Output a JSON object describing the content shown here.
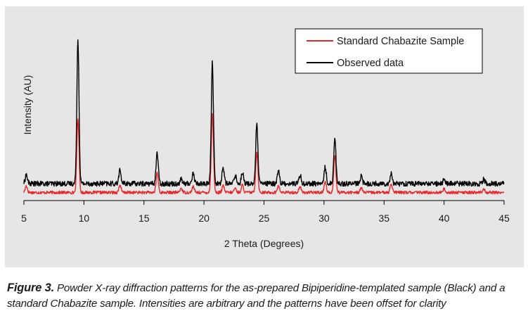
{
  "chart_data": {
    "type": "line",
    "xlabel": "2 Theta (Degrees)",
    "ylabel": "Intensity (AU)",
    "xlim": [
      5,
      45
    ],
    "x_ticks": [
      5,
      10,
      15,
      20,
      25,
      30,
      35,
      40,
      45
    ],
    "grid": false,
    "legend_position": "top-right",
    "series": [
      {
        "name": "Standard Chabazite Sample",
        "color": "#e8282c",
        "offset": 0,
        "baseline": 9,
        "noise": 2,
        "peaks": [
          [
            5.2,
            9
          ],
          [
            9.5,
            100
          ],
          [
            13.0,
            10
          ],
          [
            16.1,
            27
          ],
          [
            18.1,
            6
          ],
          [
            19.1,
            8
          ],
          [
            20.7,
            108
          ],
          [
            21.6,
            9
          ],
          [
            22.6,
            6
          ],
          [
            23.2,
            10
          ],
          [
            24.4,
            55
          ],
          [
            26.2,
            9
          ],
          [
            28.0,
            8
          ],
          [
            30.1,
            15
          ],
          [
            30.9,
            50
          ],
          [
            33.1,
            7
          ],
          [
            35.6,
            12
          ],
          [
            40.0,
            5
          ],
          [
            43.3,
            5
          ]
        ]
      },
      {
        "name": "Observed data",
        "color": "#000000",
        "offset": 12,
        "baseline": 9,
        "noise": 3.5,
        "peaks": [
          [
            5.2,
            12
          ],
          [
            9.5,
            195
          ],
          [
            13.0,
            18
          ],
          [
            16.1,
            42
          ],
          [
            18.1,
            6
          ],
          [
            19.1,
            14
          ],
          [
            20.7,
            165
          ],
          [
            21.6,
            22
          ],
          [
            22.6,
            12
          ],
          [
            23.2,
            16
          ],
          [
            24.4,
            80
          ],
          [
            26.2,
            18
          ],
          [
            28.0,
            12
          ],
          [
            30.1,
            22
          ],
          [
            30.9,
            62
          ],
          [
            33.1,
            10
          ],
          [
            35.6,
            14
          ],
          [
            40.0,
            6
          ],
          [
            43.3,
            6
          ]
        ]
      }
    ]
  },
  "caption": {
    "lead": "Figure 3.",
    "body": " Powder X-ray diffraction patterns for the as-prepared Bipiperidine-templated sample (Black) and a standard Chabazite sample. Intensities are arbitrary and the patterns have been offset for clarity"
  }
}
